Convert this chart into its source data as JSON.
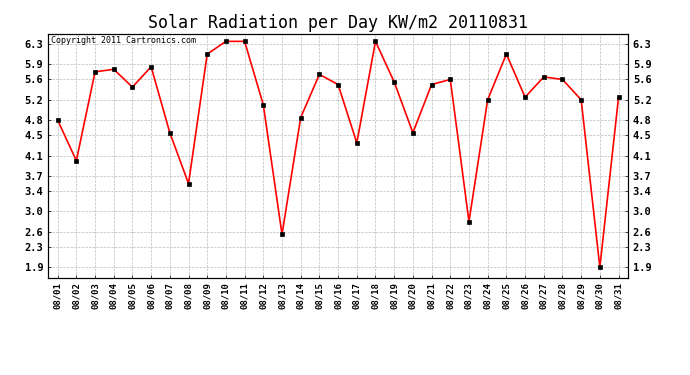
{
  "title": "Solar Radiation per Day KW/m2 20110831",
  "copyright_text": "Copyright 2011 Cartronics.com",
  "dates": [
    "08/01",
    "08/02",
    "08/03",
    "08/04",
    "08/05",
    "08/06",
    "08/07",
    "08/08",
    "08/09",
    "08/10",
    "08/11",
    "08/12",
    "08/13",
    "08/14",
    "08/15",
    "08/16",
    "08/17",
    "08/18",
    "08/19",
    "08/20",
    "08/21",
    "08/22",
    "08/23",
    "08/24",
    "08/25",
    "08/26",
    "08/27",
    "08/28",
    "08/29",
    "08/30",
    "08/31"
  ],
  "values": [
    4.8,
    4.0,
    5.75,
    5.8,
    5.45,
    5.85,
    4.55,
    3.55,
    6.1,
    6.35,
    6.35,
    5.1,
    2.55,
    4.85,
    5.7,
    5.5,
    4.35,
    6.35,
    5.55,
    4.55,
    5.5,
    5.6,
    2.8,
    5.2,
    6.1,
    5.25,
    5.65,
    5.6,
    5.2,
    1.9,
    5.25
  ],
  "line_color": "#ff0000",
  "marker": "s",
  "marker_size": 2.5,
  "background_color": "#ffffff",
  "grid_color": "#bbbbbb",
  "yticks": [
    1.9,
    2.3,
    2.6,
    3.0,
    3.4,
    3.7,
    4.1,
    4.5,
    4.8,
    5.2,
    5.6,
    5.9,
    6.3
  ],
  "ylim": [
    1.7,
    6.5
  ],
  "title_fontsize": 12
}
